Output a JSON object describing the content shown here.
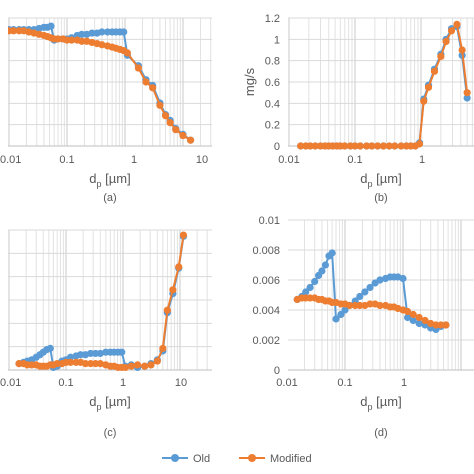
{
  "chart_data": [
    {
      "panel": "a",
      "panel_label": "(a)",
      "type": "line",
      "x_scale": "log",
      "xlim": [
        0.01,
        15
      ],
      "xticks": [
        "0.01",
        "0.1",
        "1",
        "10"
      ],
      "xlabel": "d",
      "xlabel_sub": "p",
      "xlabel_unit": " [µm]",
      "ylabel": "",
      "yticks": [],
      "grid": true,
      "series": [
        {
          "name": "Old",
          "x": [
            0.01,
            0.012,
            0.015,
            0.018,
            0.022,
            0.027,
            0.033,
            0.04,
            0.046,
            0.053,
            0.06,
            0.07,
            0.085,
            0.1,
            0.12,
            0.15,
            0.18,
            0.22,
            0.27,
            0.33,
            0.4,
            0.5,
            0.6,
            0.7,
            0.82,
            0.95,
            1.1,
            1.7,
            2.3,
            3,
            4,
            5,
            6,
            7.5,
            10,
            13.5
          ],
          "y": [
            1.0,
            1.0,
            1.0,
            1.0,
            1.0,
            1.0,
            1.01,
            1.02,
            1.02,
            1.03,
            0.91,
            0.92,
            0.92,
            0.92,
            0.93,
            0.95,
            0.96,
            0.96,
            0.97,
            0.97,
            0.98,
            0.98,
            0.98,
            0.98,
            0.98,
            0.98,
            0.78,
            0.69,
            0.57,
            0.52,
            0.37,
            0.27,
            0.22,
            0.15,
            0.1,
            0.05
          ]
        },
        {
          "name": "Modified",
          "x": [
            0.01,
            0.012,
            0.015,
            0.018,
            0.022,
            0.027,
            0.033,
            0.04,
            0.046,
            0.053,
            0.06,
            0.07,
            0.085,
            0.1,
            0.12,
            0.15,
            0.18,
            0.22,
            0.27,
            0.33,
            0.4,
            0.5,
            0.6,
            0.7,
            0.82,
            0.95,
            1.1,
            1.7,
            2.3,
            3,
            4,
            5,
            6,
            7.5,
            10,
            13.5
          ],
          "y": [
            0.99,
            0.99,
            0.99,
            0.99,
            0.98,
            0.97,
            0.96,
            0.95,
            0.94,
            0.93,
            0.92,
            0.92,
            0.92,
            0.91,
            0.91,
            0.91,
            0.9,
            0.9,
            0.89,
            0.88,
            0.87,
            0.86,
            0.85,
            0.84,
            0.83,
            0.82,
            0.8,
            0.67,
            0.55,
            0.5,
            0.35,
            0.26,
            0.2,
            0.14,
            0.09,
            0.05
          ]
        }
      ]
    },
    {
      "panel": "b",
      "panel_label": "(b)",
      "type": "line",
      "x_scale": "log",
      "xlim": [
        0.01,
        6
      ],
      "xticks": [
        "0.01",
        "0.1",
        "1"
      ],
      "xlabel": "d",
      "xlabel_sub": "p",
      "xlabel_unit": " [µm]",
      "ylabel": "mg/s",
      "ylim": [
        0,
        1.2
      ],
      "yticks": [
        "0",
        "0.2",
        "0.4",
        "0.6",
        "0.8",
        "1",
        "1.2"
      ],
      "grid": true,
      "series": [
        {
          "name": "Old",
          "x": [
            0.015,
            0.018,
            0.021,
            0.025,
            0.03,
            0.035,
            0.04,
            0.046,
            0.053,
            0.06,
            0.07,
            0.085,
            0.1,
            0.12,
            0.15,
            0.18,
            0.22,
            0.27,
            0.33,
            0.4,
            0.5,
            0.6,
            0.7,
            0.82,
            0.95,
            1.1,
            1.3,
            1.6,
            2,
            2.4,
            2.9,
            3.5,
            4.2,
            5
          ],
          "y": [
            0,
            0,
            0,
            0,
            0,
            0,
            0,
            0,
            0,
            0,
            0,
            0,
            0,
            0,
            0,
            0,
            0,
            0,
            0,
            0,
            0,
            0,
            0,
            0,
            0.03,
            0.44,
            0.57,
            0.72,
            0.86,
            1.0,
            1.1,
            1.12,
            0.85,
            0.45
          ]
        },
        {
          "name": "Modified",
          "x": [
            0.015,
            0.018,
            0.021,
            0.025,
            0.03,
            0.035,
            0.04,
            0.046,
            0.053,
            0.06,
            0.07,
            0.085,
            0.1,
            0.12,
            0.15,
            0.18,
            0.22,
            0.27,
            0.33,
            0.4,
            0.5,
            0.6,
            0.7,
            0.82,
            0.95,
            1.1,
            1.3,
            1.6,
            2,
            2.4,
            2.9,
            3.5,
            4.2,
            5
          ],
          "y": [
            0,
            0,
            0,
            0,
            0,
            0,
            0,
            0,
            0,
            0,
            0,
            0,
            0,
            0,
            0,
            0,
            0,
            0,
            0,
            0,
            0,
            0,
            0,
            0,
            0.02,
            0.42,
            0.55,
            0.7,
            0.84,
            0.98,
            1.08,
            1.14,
            0.9,
            0.5
          ]
        }
      ]
    },
    {
      "panel": "c",
      "panel_label": "(c)",
      "type": "line",
      "x_scale": "log",
      "xlim": [
        0.01,
        13
      ],
      "xticks": [
        "0.01",
        "0.1",
        "1",
        "10"
      ],
      "xlabel": "d",
      "xlabel_sub": "p",
      "xlabel_unit": " [µm]",
      "ylabel": "",
      "yticks": [],
      "grid": true,
      "series": [
        {
          "name": "Old",
          "x": [
            0.015,
            0.018,
            0.021,
            0.025,
            0.03,
            0.035,
            0.04,
            0.046,
            0.053,
            0.06,
            0.07,
            0.085,
            0.1,
            0.12,
            0.15,
            0.18,
            0.22,
            0.27,
            0.33,
            0.4,
            0.5,
            0.6,
            0.7,
            0.82,
            0.95,
            1.1,
            1.4,
            1.8,
            2.4,
            3.1,
            4,
            5,
            6,
            7.5,
            9.5,
            11.5
          ],
          "y": [
            0.0,
            0.01,
            0.02,
            0.03,
            0.05,
            0.07,
            0.09,
            0.11,
            0.12,
            -0.03,
            -0.02,
            0.02,
            0.03,
            0.05,
            0.06,
            0.07,
            0.07,
            0.08,
            0.08,
            0.08,
            0.09,
            0.09,
            0.09,
            0.09,
            0.09,
            -0.02,
            -0.01,
            -0.03,
            -0.02,
            0.0,
            0.03,
            0.1,
            0.4,
            0.55,
            0.75,
            1.0
          ]
        },
        {
          "name": "Modified",
          "x": [
            0.015,
            0.018,
            0.021,
            0.025,
            0.03,
            0.035,
            0.04,
            0.046,
            0.053,
            0.06,
            0.07,
            0.085,
            0.1,
            0.12,
            0.15,
            0.18,
            0.22,
            0.27,
            0.33,
            0.4,
            0.5,
            0.6,
            0.7,
            0.82,
            0.95,
            1.1,
            1.4,
            1.8,
            2.4,
            3.1,
            4,
            5,
            6,
            7.5,
            9.5,
            11.5
          ],
          "y": [
            0.0,
            0.0,
            -0.01,
            -0.01,
            -0.01,
            -0.02,
            -0.02,
            -0.02,
            -0.01,
            -0.01,
            0.0,
            0.0,
            0.01,
            0.01,
            0.01,
            0.01,
            0.0,
            0.0,
            0.0,
            0.0,
            -0.01,
            -0.02,
            -0.02,
            -0.03,
            -0.03,
            -0.03,
            -0.02,
            -0.01,
            -0.02,
            -0.01,
            0.02,
            0.12,
            0.42,
            0.58,
            0.76,
            1.01
          ]
        }
      ]
    },
    {
      "panel": "d",
      "panel_label": "(d)",
      "type": "line",
      "x_scale": "log",
      "xlim": [
        0.01,
        6
      ],
      "xticks": [
        "0.01",
        "0.1",
        "1"
      ],
      "xlabel": "d",
      "xlabel_sub": "p",
      "xlabel_unit": " [µm]",
      "ylabel": "",
      "ylim": [
        0,
        0.01
      ],
      "yticks": [
        "0",
        "0.002",
        "0.004",
        "0.006",
        "0.008",
        "0.01"
      ],
      "grid": true,
      "series": [
        {
          "name": "Old",
          "x": [
            0.015,
            0.018,
            0.021,
            0.025,
            0.03,
            0.035,
            0.04,
            0.046,
            0.053,
            0.06,
            0.07,
            0.085,
            0.1,
            0.12,
            0.15,
            0.18,
            0.22,
            0.27,
            0.33,
            0.4,
            0.5,
            0.6,
            0.7,
            0.82,
            1.0,
            1.2,
            1.5,
            1.9,
            2.4,
            3,
            3.7,
            4.5,
            5.5
          ],
          "y": [
            0.0047,
            0.0049,
            0.0052,
            0.0055,
            0.0059,
            0.0063,
            0.0066,
            0.007,
            0.0076,
            0.0078,
            0.0034,
            0.0037,
            0.004,
            0.0043,
            0.0046,
            0.0049,
            0.0052,
            0.0055,
            0.0058,
            0.006,
            0.0061,
            0.0062,
            0.0062,
            0.0062,
            0.0061,
            0.0035,
            0.0033,
            0.0031,
            0.003,
            0.0028,
            0.0027,
            0.0029,
            0.003
          ]
        },
        {
          "name": "Modified",
          "x": [
            0.015,
            0.018,
            0.021,
            0.025,
            0.03,
            0.035,
            0.04,
            0.046,
            0.053,
            0.06,
            0.07,
            0.085,
            0.1,
            0.12,
            0.15,
            0.18,
            0.22,
            0.27,
            0.33,
            0.4,
            0.5,
            0.6,
            0.7,
            0.82,
            1.0,
            1.2,
            1.5,
            1.9,
            2.4,
            3,
            3.7,
            4.5,
            5.5
          ],
          "y": [
            0.0047,
            0.0048,
            0.0048,
            0.0048,
            0.0048,
            0.0047,
            0.0047,
            0.0046,
            0.0046,
            0.0045,
            0.0045,
            0.0044,
            0.0044,
            0.0043,
            0.0043,
            0.0043,
            0.0043,
            0.0044,
            0.0044,
            0.0043,
            0.0043,
            0.0042,
            0.0042,
            0.0041,
            0.004,
            0.0039,
            0.0037,
            0.0035,
            0.0033,
            0.0031,
            0.003,
            0.003,
            0.003
          ]
        }
      ]
    }
  ],
  "legend": {
    "items": [
      {
        "label": "Old",
        "color": "#5b9bd5"
      },
      {
        "label": "Modified",
        "color": "#ed7d31"
      }
    ],
    "position": "bottom-center"
  },
  "colors": {
    "old": "#5b9bd5",
    "modified": "#ed7d31",
    "grid": "#d9d9d9",
    "text": "#595959"
  }
}
